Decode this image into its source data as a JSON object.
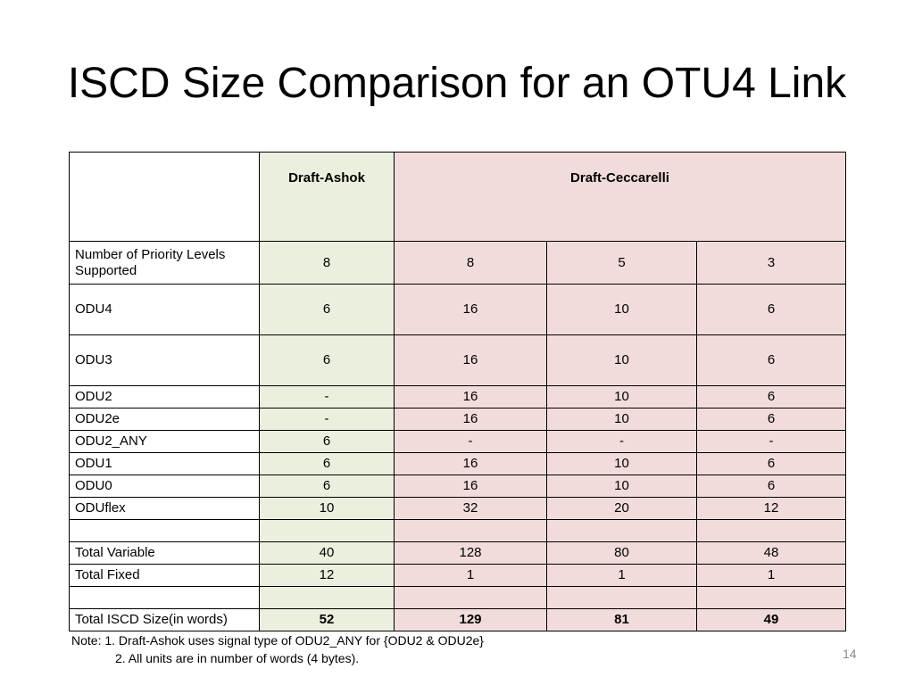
{
  "title": "ISCD Size Comparison for an OTU4 Link",
  "table": {
    "header": [
      "Draft-Ashok",
      "Draft-Ceccarelli"
    ],
    "rows": [
      [
        "Number of Priority Levels  Supported",
        "8",
        "8",
        "5",
        "3"
      ],
      [
        "ODU4",
        "6",
        "16",
        "10",
        "6"
      ],
      [
        "ODU3",
        "6",
        "16",
        "10",
        "6"
      ],
      [
        "ODU2",
        "-",
        "16",
        "10",
        "6"
      ],
      [
        "ODU2e",
        "-",
        "16",
        "10",
        "6"
      ],
      [
        "ODU2_ANY",
        "6",
        "-",
        "-",
        "-"
      ],
      [
        "ODU1",
        "6",
        "16",
        "10",
        "6"
      ],
      [
        "ODU0",
        "6",
        "16",
        "10",
        "6"
      ],
      [
        "ODUflex",
        "10",
        "32",
        "20",
        "12"
      ],
      [
        "Total Variable",
        "40",
        "128",
        "80",
        "48"
      ],
      [
        "Total Fixed",
        "12",
        "1",
        "1",
        "1"
      ],
      [
        "Total ISCD Size(in words)",
        "52",
        "129",
        "81",
        "49"
      ]
    ]
  },
  "notes": [
    "Note:  1. Draft-Ashok uses signal type of ODU2_ANY for {ODU2 & ODU2e}",
    "2. All units are in number of words (4 bytes)."
  ],
  "page_number": "14"
}
